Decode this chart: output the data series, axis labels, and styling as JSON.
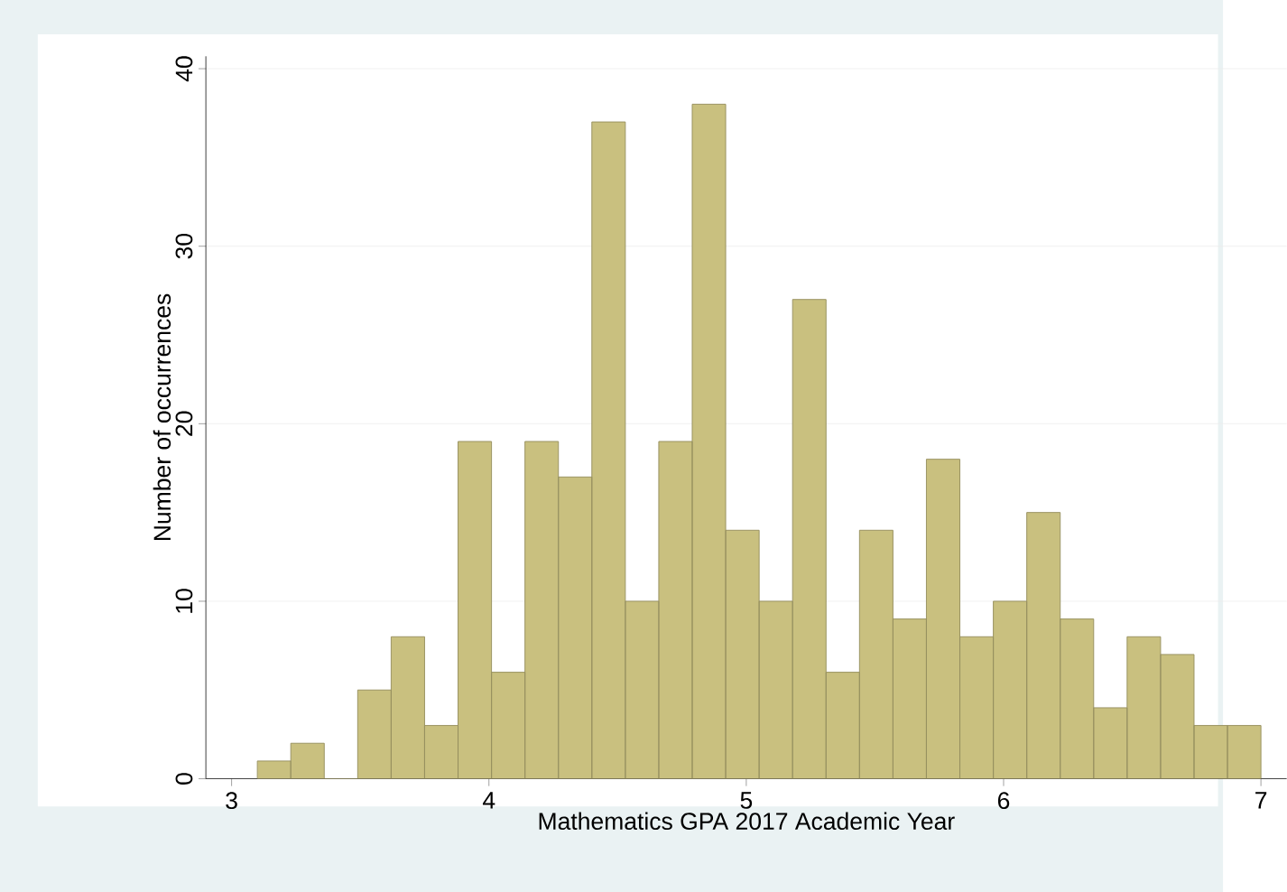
{
  "chart_data": {
    "type": "histogram",
    "xlabel": "Mathematics GPA 2017 Academic Year",
    "ylabel": "Number of occurrences",
    "bins": [
      3.1,
      3.23,
      3.36,
      3.49,
      3.62,
      3.75,
      3.88,
      4.01,
      4.14,
      4.27,
      4.4,
      4.53,
      4.66,
      4.79,
      4.92,
      5.05,
      5.18,
      5.31,
      5.44,
      5.57,
      5.7,
      5.83,
      5.96,
      6.09,
      6.22,
      6.35,
      6.48,
      6.61,
      6.74,
      6.87,
      7.0
    ],
    "values": [
      1,
      2,
      0,
      5,
      8,
      3,
      19,
      6,
      19,
      17,
      37,
      10,
      19,
      38,
      14,
      10,
      27,
      6,
      14,
      9,
      18,
      8,
      10,
      15,
      9,
      4,
      8,
      7,
      3,
      3
    ],
    "color": "#c9c07f",
    "xlim": [
      2.9,
      7.1
    ],
    "ylim": [
      0,
      40.7
    ],
    "xticks": [
      3,
      4,
      5,
      6,
      7
    ],
    "yticks": [
      0,
      10,
      20,
      30,
      40
    ],
    "grid": "y"
  }
}
